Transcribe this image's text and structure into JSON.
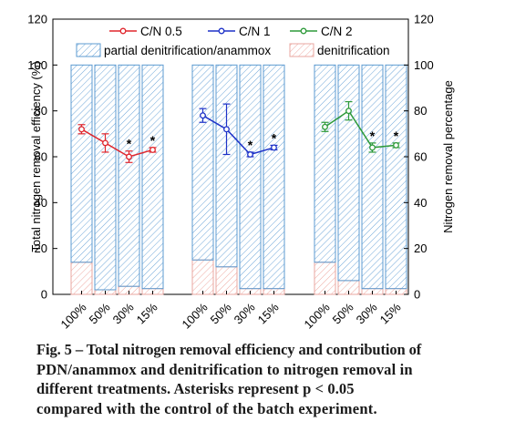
{
  "chart_data": {
    "type": "bar",
    "y_left_label": "Total nitrogen removal efficiency (%)",
    "y_right_label": "Nitrogen removal percentage",
    "ylim": [
      0,
      120
    ],
    "y_ticks": [
      "0",
      "20",
      "40",
      "60",
      "80",
      "100",
      "120"
    ],
    "grid": false,
    "legend_position": "top",
    "line_series": [
      {
        "name": "C/N 0.5",
        "color": "#e0262d"
      },
      {
        "name": "C/N 1",
        "color": "#1e32c8"
      },
      {
        "name": "C/N 2",
        "color": "#2e9a3a"
      }
    ],
    "bar_series": [
      {
        "name": "partial denitrification/anammox",
        "color": "#5c9bd1"
      },
      {
        "name": "denitrification",
        "color": "#e8a7a0"
      }
    ],
    "groups": [
      {
        "line_series": "C/N 0.5",
        "categories": [
          "100%",
          "50%",
          "30%",
          "15%"
        ],
        "denitrification": [
          14,
          2,
          3.5,
          2.5
        ],
        "partial_denitrification_anammox": [
          86,
          98,
          96.5,
          97.5
        ],
        "efficiency": [
          72,
          66,
          60,
          63
        ],
        "error": [
          2,
          4,
          2.5,
          1
        ],
        "significant": [
          "",
          "",
          "*",
          "*"
        ]
      },
      {
        "line_series": "C/N 1",
        "categories": [
          "100%",
          "50%",
          "30%",
          "15%"
        ],
        "denitrification": [
          15,
          12,
          2.5,
          2.5
        ],
        "partial_denitrification_anammox": [
          85,
          88,
          97.5,
          97.5
        ],
        "efficiency": [
          78,
          72,
          61,
          64
        ],
        "error": [
          3,
          11,
          1,
          1
        ],
        "significant": [
          "",
          "",
          "*",
          "*"
        ]
      },
      {
        "line_series": "C/N 2",
        "categories": [
          "100%",
          "50%",
          "30%",
          "15%"
        ],
        "denitrification": [
          14,
          6,
          2.5,
          2.5
        ],
        "partial_denitrification_anammox": [
          86,
          94,
          97.5,
          97.5
        ],
        "efficiency": [
          73,
          80,
          64,
          65
        ],
        "error": [
          2,
          4,
          2,
          1
        ],
        "significant": [
          "",
          "",
          "*",
          "*"
        ]
      }
    ]
  },
  "caption": {
    "line1": "Fig. 5 – Total nitrogen removal efficiency and contribution of",
    "line2": "PDN/anammox and denitrification to nitrogen removal in",
    "line3": "different treatments. Asterisks represent p < 0.05",
    "line4": "compared with the control of the batch experiment."
  }
}
